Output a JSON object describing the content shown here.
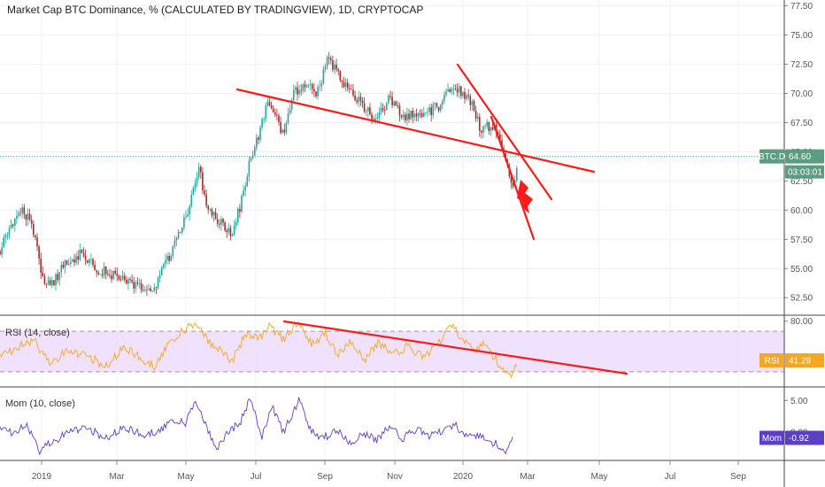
{
  "title": "Market Cap BTC Dominance, % (CALCULATED BY TRADINGVIEW), 1D, CRYPTOCAP",
  "colors": {
    "up": "#26a69a",
    "down": "#a52a2a",
    "trend": "#ff1a1a",
    "rsi": "#f5a623",
    "mom": "#5b3fc9",
    "price_tag": "#5c9d7f",
    "rsi_tag": "#f5a623",
    "mom_tag": "#5b3fc9",
    "rsi_band": "#ead6ff"
  },
  "price_tag": {
    "symbol": "BTC.D",
    "value": "64.60",
    "countdown": "03:03:01"
  },
  "rsi_label": "RSI (14, close)",
  "rsi_tag": {
    "name": "RSI",
    "value": "41.28"
  },
  "mom_label": "Mom (10, close)",
  "mom_tag": {
    "name": "Mom",
    "value": "-0.92"
  },
  "x_axis_labels": [
    "2019",
    "Mar",
    "May",
    "Jul",
    "Sep",
    "Nov",
    "2020",
    "Mar",
    "May",
    "Jul",
    "Sep"
  ],
  "chart_data": [
    {
      "type": "candlestick",
      "ylabel": "",
      "y_ticks": [
        "77.50",
        "75.00",
        "72.50",
        "70.00",
        "67.50",
        "65.00",
        "62.50",
        "60.00",
        "57.50",
        "55.00",
        "52.50"
      ],
      "ylim": [
        51.0,
        78.0
      ],
      "last_value": 64.6,
      "path": [
        [
          0,
          56.5
        ],
        [
          10,
          58.2
        ],
        [
          22,
          60.0
        ],
        [
          35,
          59.3
        ],
        [
          48,
          54.0
        ],
        [
          58,
          53.6
        ],
        [
          72,
          55.2
        ],
        [
          90,
          56.2
        ],
        [
          110,
          55.0
        ],
        [
          130,
          54.3
        ],
        [
          150,
          53.5
        ],
        [
          172,
          53.0
        ],
        [
          188,
          55.5
        ],
        [
          205,
          58.5
        ],
        [
          215,
          60.5
        ],
        [
          225,
          63.5
        ],
        [
          235,
          60.0
        ],
        [
          248,
          59.0
        ],
        [
          262,
          58.0
        ],
        [
          272,
          60.5
        ],
        [
          282,
          64.0
        ],
        [
          292,
          66.5
        ],
        [
          304,
          69.5
        ],
        [
          320,
          66.5
        ],
        [
          332,
          70.0
        ],
        [
          345,
          71.0
        ],
        [
          358,
          70.0
        ],
        [
          370,
          72.8
        ],
        [
          382,
          71.8
        ],
        [
          395,
          70.0
        ],
        [
          410,
          69.0
        ],
        [
          425,
          67.6
        ],
        [
          440,
          69.5
        ],
        [
          455,
          68.0
        ],
        [
          470,
          68.2
        ],
        [
          485,
          68.5
        ],
        [
          498,
          69.0
        ],
        [
          510,
          70.8
        ],
        [
          522,
          70.0
        ],
        [
          532,
          69.4
        ],
        [
          542,
          67.0
        ],
        [
          552,
          67.2
        ],
        [
          562,
          67.0
        ],
        [
          572,
          64.0
        ],
        [
          580,
          62.0
        ],
        [
          585,
          63.5
        ]
      ]
    },
    {
      "type": "line",
      "name": "RSI",
      "y_ticks": [
        "80.00"
      ],
      "ylim": [
        15,
        85
      ],
      "band": [
        30,
        70
      ],
      "last_value": 41.28,
      "path": [
        [
          0,
          45
        ],
        [
          20,
          55
        ],
        [
          40,
          60
        ],
        [
          55,
          38
        ],
        [
          75,
          50
        ],
        [
          100,
          45
        ],
        [
          120,
          35
        ],
        [
          140,
          55
        ],
        [
          160,
          42
        ],
        [
          175,
          35
        ],
        [
          190,
          58
        ],
        [
          205,
          70
        ],
        [
          220,
          78
        ],
        [
          235,
          60
        ],
        [
          250,
          52
        ],
        [
          262,
          40
        ],
        [
          278,
          68
        ],
        [
          292,
          62
        ],
        [
          305,
          75
        ],
        [
          320,
          62
        ],
        [
          335,
          78
        ],
        [
          352,
          58
        ],
        [
          368,
          68
        ],
        [
          382,
          47
        ],
        [
          398,
          60
        ],
        [
          412,
          42
        ],
        [
          428,
          58
        ],
        [
          445,
          48
        ],
        [
          460,
          55
        ],
        [
          478,
          45
        ],
        [
          495,
          58
        ],
        [
          510,
          76
        ],
        [
          522,
          62
        ],
        [
          535,
          50
        ],
        [
          548,
          58
        ],
        [
          560,
          42
        ],
        [
          570,
          30
        ],
        [
          578,
          22
        ],
        [
          585,
          41
        ]
      ]
    },
    {
      "type": "line",
      "name": "Mom",
      "y_ticks": [
        "5.00",
        "0.00"
      ],
      "ylim": [
        -4.5,
        7
      ],
      "last_value": -0.92,
      "path": [
        [
          0,
          0.5
        ],
        [
          15,
          0.0
        ],
        [
          30,
          1.0
        ],
        [
          45,
          -3.0
        ],
        [
          60,
          -1.5
        ],
        [
          80,
          0.2
        ],
        [
          100,
          0.5
        ],
        [
          120,
          -1.0
        ],
        [
          140,
          0.8
        ],
        [
          160,
          -0.5
        ],
        [
          178,
          0.0
        ],
        [
          195,
          2.0
        ],
        [
          210,
          1.5
        ],
        [
          220,
          5.0
        ],
        [
          232,
          1.0
        ],
        [
          245,
          -2.5
        ],
        [
          260,
          0.5
        ],
        [
          270,
          1.0
        ],
        [
          283,
          5.5
        ],
        [
          295,
          -1.0
        ],
        [
          308,
          4.0
        ],
        [
          320,
          0.0
        ],
        [
          338,
          5.0
        ],
        [
          350,
          0.5
        ],
        [
          365,
          -1.0
        ],
        [
          380,
          0.5
        ],
        [
          395,
          -2.0
        ],
        [
          410,
          0.0
        ],
        [
          425,
          -1.5
        ],
        [
          440,
          1.0
        ],
        [
          455,
          -1.0
        ],
        [
          470,
          0.5
        ],
        [
          485,
          -0.5
        ],
        [
          500,
          0.2
        ],
        [
          515,
          1.0
        ],
        [
          528,
          -1.0
        ],
        [
          540,
          -0.5
        ],
        [
          552,
          -1.5
        ],
        [
          562,
          -2.0
        ],
        [
          572,
          -3.5
        ],
        [
          580,
          -1.0
        ]
      ]
    }
  ]
}
